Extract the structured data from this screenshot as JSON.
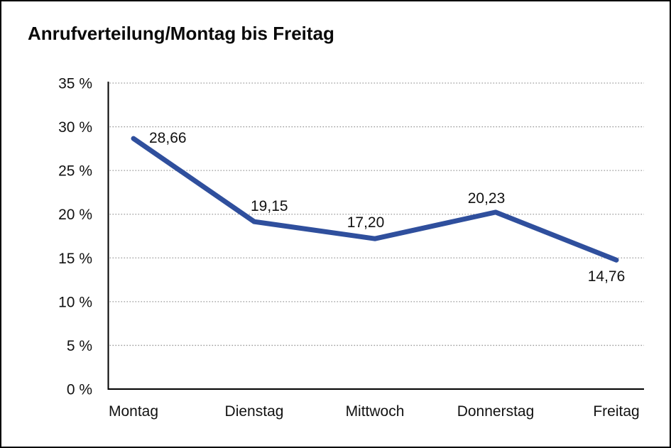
{
  "window": {
    "background_color": "#ffffff",
    "border_color": "#000000"
  },
  "chart": {
    "title": "Anrufverteilung/Montag bis Freitag"
  },
  "chart_data": {
    "type": "line",
    "title": "Anrufverteilung/Montag bis Freitag",
    "categories": [
      "Montag",
      "Dienstag",
      "Mittwoch",
      "Donnerstag",
      "Freitag"
    ],
    "values": [
      28.66,
      19.15,
      17.2,
      20.23,
      14.76
    ],
    "value_labels": [
      "28,66",
      "19,15",
      "17,20",
      "20,23",
      "14,76"
    ],
    "y_tick_labels": [
      "0 %",
      "5 %",
      "10 %",
      "15 %",
      "20 %",
      "25 %",
      "30 %",
      "35 %"
    ],
    "ylim": [
      0,
      35
    ],
    "y_step": 5,
    "grid": true,
    "grid_style": "dotted",
    "grid_color": "#9a9a9a",
    "axis_color": "#000000",
    "line_color": "#2f4f9d",
    "label_color": "#111111",
    "legend": "none",
    "xlabel": "",
    "ylabel": ""
  }
}
